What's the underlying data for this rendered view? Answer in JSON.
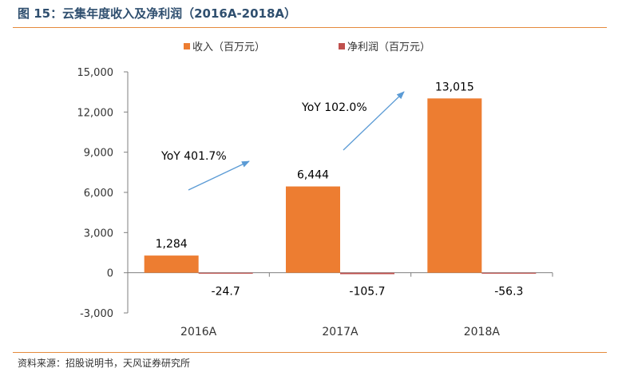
{
  "figure": {
    "title": "图 15：云集年度收入及净利润（2016A-2018A）",
    "source": "资料来源：招股说明书，天风证券研究所"
  },
  "chart_data": {
    "type": "bar",
    "categories": [
      "2016A",
      "2017A",
      "2018A"
    ],
    "series": [
      {
        "name": "收入（百万元）",
        "color": "#ed7d31",
        "values": [
          1284,
          6444,
          13015
        ],
        "labels": [
          "1,284",
          "6,444",
          "13,015"
        ]
      },
      {
        "name": "净利润（百万元）",
        "color": "#c0504d",
        "values": [
          -24.7,
          -105.7,
          -56.3
        ],
        "labels": [
          "-24.7",
          "-105.7",
          "-56.3"
        ]
      }
    ],
    "ylim": [
      -3000,
      15000
    ],
    "yticks": [
      15000,
      12000,
      9000,
      6000,
      3000,
      0,
      -3000
    ],
    "ytick_labels": [
      "15,000",
      "12,000",
      "9,000",
      "6,000",
      "3,000",
      "0",
      "-3,000"
    ],
    "legend_position": "top-center",
    "grid": false,
    "annotations": [
      {
        "text": "YoY 401.7%",
        "between": [
          "2016A",
          "2017A"
        ]
      },
      {
        "text": "YoY 102.0%",
        "between": [
          "2017A",
          "2018A"
        ]
      }
    ],
    "arrow_color": "#5b9bd5"
  }
}
